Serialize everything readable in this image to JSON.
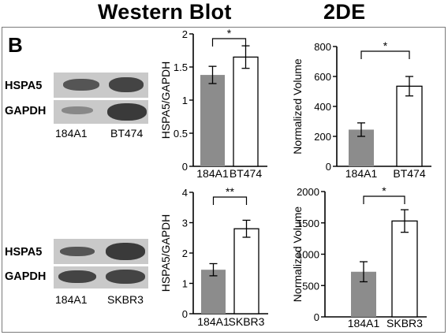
{
  "header": {
    "western_title": "Western Blot",
    "twode_title": "2DE",
    "panel_letter": "B"
  },
  "blots": [
    {
      "id": "blot-184A1-BT474",
      "rows": [
        {
          "label": "HSPA5"
        },
        {
          "label": "GAPDH"
        }
      ],
      "lanes": [
        "184A1",
        "BT474"
      ]
    },
    {
      "id": "blot-184A1-SKBR3",
      "rows": [
        {
          "label": "HSPA5"
        },
        {
          "label": "GAPDH"
        }
      ],
      "lanes": [
        "184A1",
        "SKBR3"
      ]
    }
  ],
  "colors": {
    "filled_bar": "#8c8c8c",
    "open_bar": "#ffffff",
    "axis": "#000000"
  },
  "chart_data": [
    {
      "type": "bar",
      "categories": [
        "184A1",
        "BT474"
      ],
      "values": [
        1.38,
        1.65
      ],
      "errors": [
        0.13,
        0.17
      ],
      "ylabel": "HSPA5/GAPDH",
      "ylim": [
        0,
        2
      ],
      "yticks": [
        "0",
        "0.5",
        "1",
        "1.5",
        "2"
      ],
      "significance": "*"
    },
    {
      "type": "bar",
      "categories": [
        "184A1",
        "BT474"
      ],
      "values": [
        245,
        535
      ],
      "errors": [
        45,
        65
      ],
      "ylabel": "Normalized Volume",
      "ylim": [
        0,
        800
      ],
      "yticks": [
        "0",
        "200",
        "400",
        "600",
        "800"
      ],
      "significance": "*"
    },
    {
      "type": "bar",
      "categories": [
        "184A1",
        "SKBR3"
      ],
      "values": [
        1.45,
        2.8
      ],
      "errors": [
        0.2,
        0.28
      ],
      "ylabel": "HSPA5/GAPDH",
      "ylim": [
        0,
        4
      ],
      "yticks": [
        "0",
        "1",
        "2",
        "3",
        "4"
      ],
      "significance": "**"
    },
    {
      "type": "bar",
      "categories": [
        "184A1",
        "SKBR3"
      ],
      "values": [
        720,
        1530
      ],
      "errors": [
        160,
        180
      ],
      "ylabel": "Normalized Volume",
      "ylim": [
        0,
        2000
      ],
      "yticks": [
        "0",
        "500",
        "1000",
        "1500",
        "2000"
      ],
      "significance": "*"
    }
  ]
}
